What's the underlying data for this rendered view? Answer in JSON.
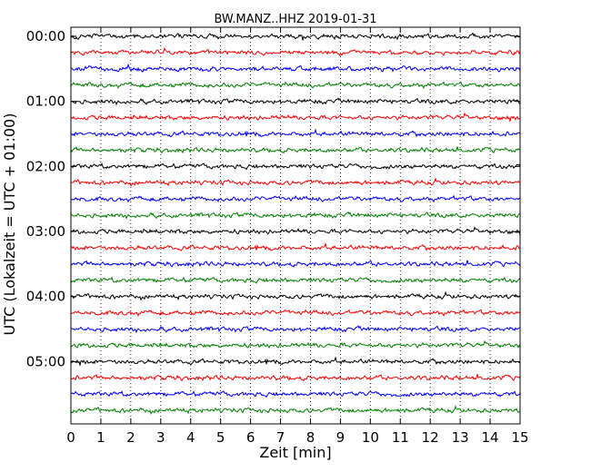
{
  "chart_data": {
    "type": "line",
    "title": "BW.MANZ..HHZ 2019-01-31",
    "xlabel": "Zeit  [min]",
    "ylabel": "UTC (Lokalzeit = UTC + 01:00)",
    "xlim": [
      0,
      15
    ],
    "x_ticks": [
      "0",
      "1",
      "2",
      "3",
      "4",
      "5",
      "6",
      "7",
      "8",
      "9",
      "10",
      "11",
      "12",
      "13",
      "14",
      "15"
    ],
    "y_tick_labels": [
      "00:00",
      "01:00",
      "02:00",
      "03:00",
      "04:00",
      "05:00"
    ],
    "trace_interval_min": 15,
    "trace_colors": [
      "#000000",
      "#ff0000",
      "#0000ff",
      "#008000"
    ],
    "grid": "vertical dotted",
    "traces": [
      {
        "start": "00:00"
      },
      {
        "start": "00:15"
      },
      {
        "start": "00:30"
      },
      {
        "start": "00:45"
      },
      {
        "start": "01:00"
      },
      {
        "start": "01:15"
      },
      {
        "start": "01:30"
      },
      {
        "start": "01:45"
      },
      {
        "start": "02:00"
      },
      {
        "start": "02:15"
      },
      {
        "start": "02:30"
      },
      {
        "start": "02:45"
      },
      {
        "start": "03:00"
      },
      {
        "start": "03:15"
      },
      {
        "start": "03:30"
      },
      {
        "start": "03:45"
      },
      {
        "start": "04:00"
      },
      {
        "start": "04:15"
      },
      {
        "start": "04:30"
      },
      {
        "start": "04:45"
      },
      {
        "start": "05:00"
      },
      {
        "start": "05:15"
      },
      {
        "start": "05:30"
      },
      {
        "start": "05:45"
      }
    ]
  }
}
